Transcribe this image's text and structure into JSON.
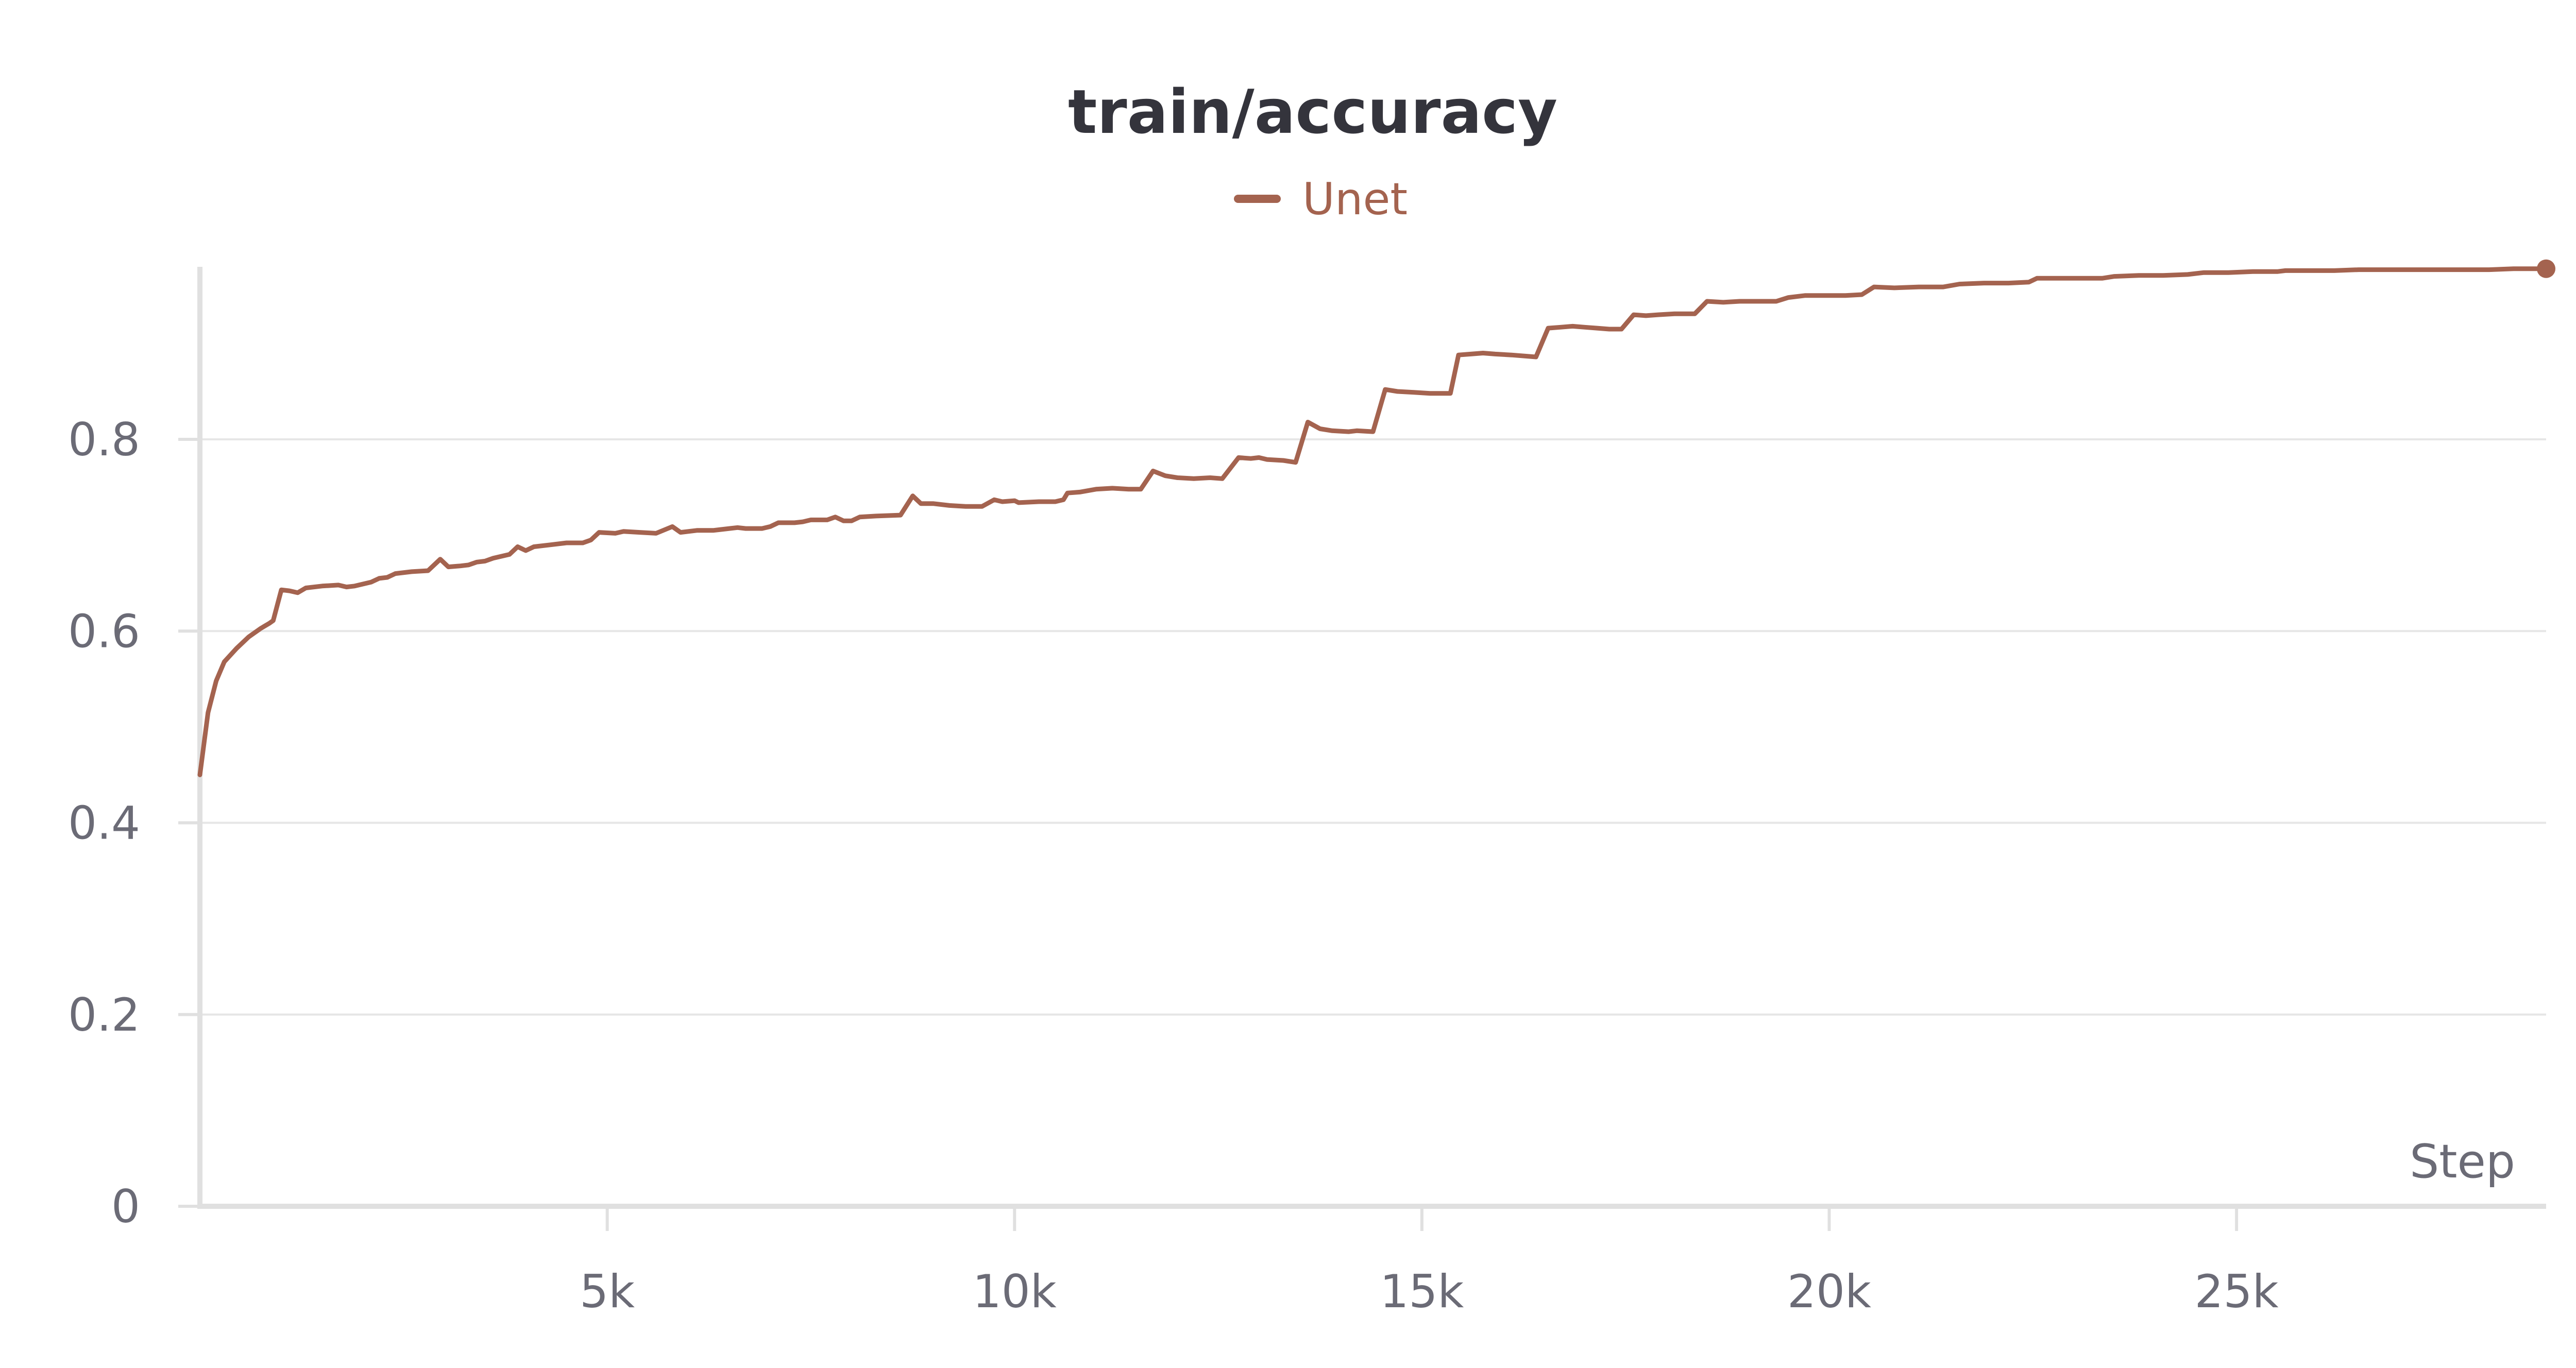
{
  "colors": {
    "series": "#a4634f",
    "grid": "#e6e6e6",
    "axis": "#e0e0e0",
    "text": "#6b6b76",
    "title": "#34343c"
  },
  "chart_data": {
    "type": "line",
    "title": "train/accuracy",
    "xlabel": "Step",
    "ylabel": "",
    "xlim": [
      0,
      28800
    ],
    "ylim": [
      0,
      0.98
    ],
    "x_ticks": [
      {
        "value": 5000,
        "label": "5k"
      },
      {
        "value": 10000,
        "label": "10k"
      },
      {
        "value": 15000,
        "label": "15k"
      },
      {
        "value": 20000,
        "label": "20k"
      },
      {
        "value": 25000,
        "label": "25k"
      }
    ],
    "y_ticks": [
      {
        "value": 0,
        "label": "0"
      },
      {
        "value": 0.2,
        "label": "0.2"
      },
      {
        "value": 0.4,
        "label": "0.4"
      },
      {
        "value": 0.6,
        "label": "0.6"
      },
      {
        "value": 0.8,
        "label": "0.8"
      }
    ],
    "grid": true,
    "legend": "top-center",
    "series": [
      {
        "name": "Unet",
        "color": "#a4634f",
        "points": [
          [
            0,
            0.45
          ],
          [
            100,
            0.515
          ],
          [
            200,
            0.548
          ],
          [
            300,
            0.568
          ],
          [
            450,
            0.582
          ],
          [
            600,
            0.594
          ],
          [
            750,
            0.603
          ],
          [
            850,
            0.608
          ],
          [
            900,
            0.611
          ],
          [
            1000,
            0.643
          ],
          [
            1100,
            0.642
          ],
          [
            1200,
            0.64
          ],
          [
            1300,
            0.645
          ],
          [
            1500,
            0.647
          ],
          [
            1700,
            0.648
          ],
          [
            1800,
            0.646
          ],
          [
            1900,
            0.647
          ],
          [
            2100,
            0.651
          ],
          [
            2200,
            0.655
          ],
          [
            2300,
            0.656
          ],
          [
            2400,
            0.66
          ],
          [
            2600,
            0.662
          ],
          [
            2800,
            0.663
          ],
          [
            2950,
            0.675
          ],
          [
            3050,
            0.667
          ],
          [
            3200,
            0.668
          ],
          [
            3300,
            0.669
          ],
          [
            3400,
            0.672
          ],
          [
            3500,
            0.673
          ],
          [
            3600,
            0.676
          ],
          [
            3800,
            0.68
          ],
          [
            3900,
            0.688
          ],
          [
            4000,
            0.684
          ],
          [
            4100,
            0.688
          ],
          [
            4300,
            0.69
          ],
          [
            4500,
            0.692
          ],
          [
            4700,
            0.692
          ],
          [
            4800,
            0.695
          ],
          [
            4900,
            0.703
          ],
          [
            5100,
            0.702
          ],
          [
            5200,
            0.704
          ],
          [
            5400,
            0.703
          ],
          [
            5600,
            0.702
          ],
          [
            5800,
            0.709
          ],
          [
            5900,
            0.703
          ],
          [
            6100,
            0.705
          ],
          [
            6300,
            0.705
          ],
          [
            6500,
            0.707
          ],
          [
            6600,
            0.708
          ],
          [
            6700,
            0.707
          ],
          [
            6900,
            0.707
          ],
          [
            7000,
            0.709
          ],
          [
            7100,
            0.713
          ],
          [
            7300,
            0.713
          ],
          [
            7400,
            0.714
          ],
          [
            7500,
            0.716
          ],
          [
            7700,
            0.716
          ],
          [
            7800,
            0.719
          ],
          [
            7900,
            0.715
          ],
          [
            8000,
            0.715
          ],
          [
            8100,
            0.719
          ],
          [
            8300,
            0.72
          ],
          [
            8600,
            0.721
          ],
          [
            8750,
            0.741
          ],
          [
            8850,
            0.733
          ],
          [
            9000,
            0.733
          ],
          [
            9200,
            0.731
          ],
          [
            9400,
            0.73
          ],
          [
            9600,
            0.73
          ],
          [
            9750,
            0.737
          ],
          [
            9850,
            0.735
          ],
          [
            10000,
            0.736
          ],
          [
            10050,
            0.734
          ],
          [
            10300,
            0.735
          ],
          [
            10500,
            0.735
          ],
          [
            10600,
            0.737
          ],
          [
            10650,
            0.744
          ],
          [
            10800,
            0.745
          ],
          [
            11000,
            0.748
          ],
          [
            11200,
            0.749
          ],
          [
            11400,
            0.748
          ],
          [
            11550,
            0.748
          ],
          [
            11700,
            0.767
          ],
          [
            11850,
            0.762
          ],
          [
            12000,
            0.76
          ],
          [
            12200,
            0.759
          ],
          [
            12400,
            0.76
          ],
          [
            12550,
            0.759
          ],
          [
            12750,
            0.781
          ],
          [
            12900,
            0.78
          ],
          [
            13000,
            0.781
          ],
          [
            13100,
            0.779
          ],
          [
            13300,
            0.778
          ],
          [
            13450,
            0.776
          ],
          [
            13600,
            0.818
          ],
          [
            13750,
            0.811
          ],
          [
            13900,
            0.809
          ],
          [
            14100,
            0.808
          ],
          [
            14200,
            0.809
          ],
          [
            14400,
            0.808
          ],
          [
            14550,
            0.852
          ],
          [
            14700,
            0.85
          ],
          [
            14900,
            0.849
          ],
          [
            15100,
            0.848
          ],
          [
            15350,
            0.848
          ],
          [
            15450,
            0.888
          ],
          [
            15600,
            0.889
          ],
          [
            15750,
            0.89
          ],
          [
            15900,
            0.889
          ],
          [
            16100,
            0.888
          ],
          [
            16400,
            0.886
          ],
          [
            16550,
            0.916
          ],
          [
            16700,
            0.917
          ],
          [
            16850,
            0.918
          ],
          [
            17000,
            0.917
          ],
          [
            17150,
            0.916
          ],
          [
            17300,
            0.915
          ],
          [
            17450,
            0.915
          ],
          [
            17600,
            0.93
          ],
          [
            17750,
            0.929
          ],
          [
            17900,
            0.93
          ],
          [
            18100,
            0.931
          ],
          [
            18350,
            0.931
          ],
          [
            18500,
            0.944
          ],
          [
            18700,
            0.943
          ],
          [
            18900,
            0.944
          ],
          [
            19100,
            0.944
          ],
          [
            19350,
            0.944
          ],
          [
            19500,
            0.948
          ],
          [
            19700,
            0.95
          ],
          [
            20000,
            0.95
          ],
          [
            20200,
            0.95
          ],
          [
            20400,
            0.951
          ],
          [
            20550,
            0.959
          ],
          [
            20800,
            0.958
          ],
          [
            21100,
            0.959
          ],
          [
            21400,
            0.959
          ],
          [
            21600,
            0.962
          ],
          [
            21900,
            0.963
          ],
          [
            22200,
            0.963
          ],
          [
            22450,
            0.964
          ],
          [
            22550,
            0.968
          ],
          [
            22800,
            0.968
          ],
          [
            23100,
            0.968
          ],
          [
            23350,
            0.968
          ],
          [
            23500,
            0.97
          ],
          [
            23800,
            0.971
          ],
          [
            24100,
            0.971
          ],
          [
            24400,
            0.972
          ],
          [
            24600,
            0.974
          ],
          [
            24900,
            0.974
          ],
          [
            25200,
            0.975
          ],
          [
            25500,
            0.975
          ],
          [
            25600,
            0.976
          ],
          [
            25900,
            0.976
          ],
          [
            26200,
            0.976
          ],
          [
            26500,
            0.977
          ],
          [
            26600,
            0.977
          ],
          [
            26900,
            0.977
          ],
          [
            27200,
            0.977
          ],
          [
            27500,
            0.977
          ],
          [
            27800,
            0.977
          ],
          [
            28100,
            0.977
          ],
          [
            28400,
            0.978
          ],
          [
            28800,
            0.978
          ]
        ]
      }
    ]
  }
}
